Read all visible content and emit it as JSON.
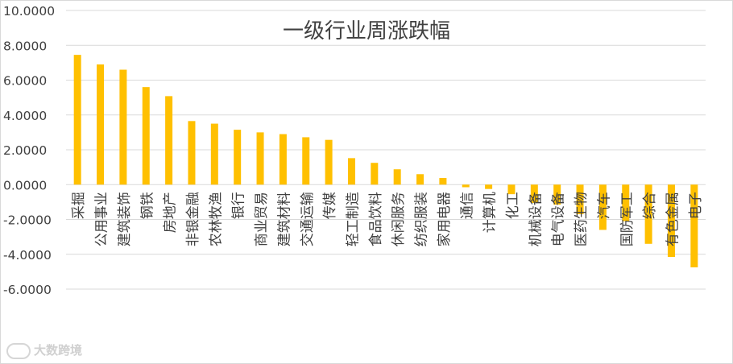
{
  "chart_data": {
    "type": "bar",
    "title": "一级行业周涨跌幅",
    "xlabel": "",
    "ylabel": "",
    "ylim": [
      -6,
      10
    ],
    "yticks": [
      "10.0000",
      "8.0000",
      "6.0000",
      "4.0000",
      "2.0000",
      "0.0000",
      "-2.0000",
      "-4.0000",
      "-6.0000"
    ],
    "ytick_values": [
      10,
      8,
      6,
      4,
      2,
      0,
      -2,
      -4,
      -6
    ],
    "grid": true,
    "bar_color": "#ffc000",
    "categories": [
      "采掘",
      "公用事业",
      "建筑装饰",
      "钢铁",
      "房地产",
      "非银金融",
      "农林牧渔",
      "银行",
      "商业贸易",
      "建筑材料",
      "交通运输",
      "传媒",
      "轻工制造",
      "食品饮料",
      "休闲服务",
      "纺织服装",
      "家用电器",
      "通信",
      "计算机",
      "化工",
      "机械设备",
      "电气设备",
      "医药生物",
      "汽车",
      "国防军工",
      "综合",
      "有色金属",
      "电子"
    ],
    "values": [
      7.45,
      6.9,
      6.6,
      5.6,
      5.08,
      3.65,
      3.5,
      3.15,
      3.0,
      2.9,
      2.72,
      2.57,
      1.52,
      1.25,
      0.88,
      0.6,
      0.38,
      -0.15,
      -0.25,
      -0.55,
      -1.05,
      -1.15,
      -1.7,
      -2.6,
      -2.1,
      -3.4,
      -4.15,
      -4.75
    ]
  },
  "watermark": {
    "text": "大数跨境"
  }
}
